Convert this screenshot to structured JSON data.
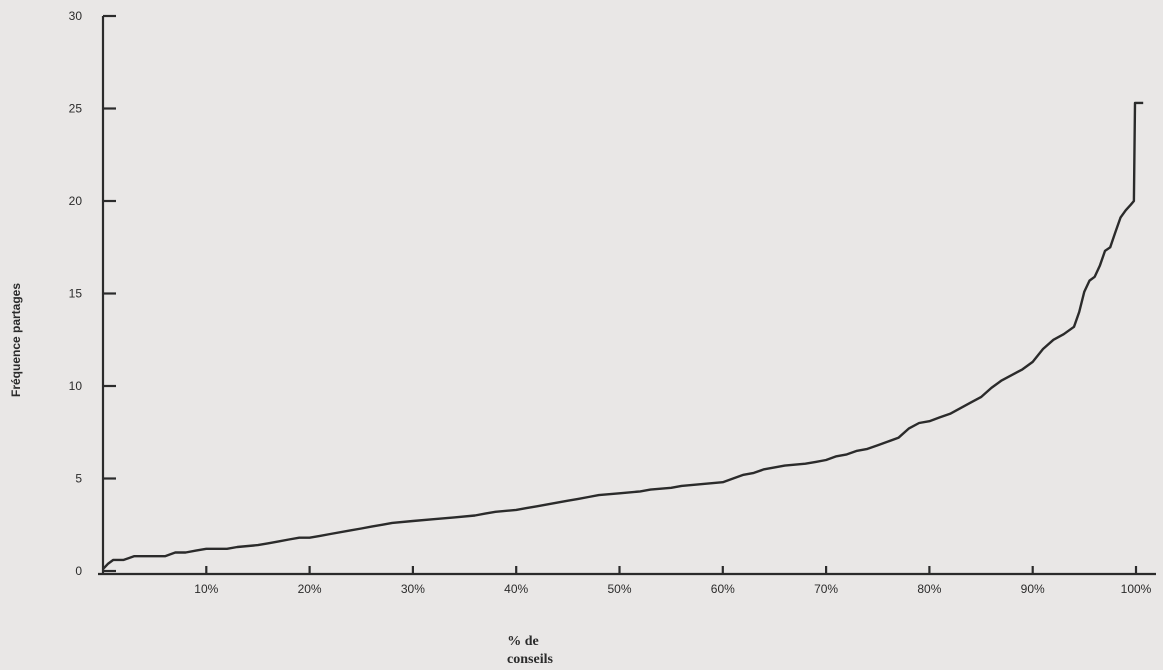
{
  "chart_data": {
    "type": "line",
    "title": "",
    "ylabel": "Fréquence   partages",
    "xlabel_lines": [
      "% de",
      "conseils"
    ],
    "xlim": [
      0,
      100
    ],
    "ylim": [
      0,
      30
    ],
    "x_ticks": [
      {
        "value": 10,
        "label": "10%"
      },
      {
        "value": 20,
        "label": "20%"
      },
      {
        "value": 30,
        "label": "30%"
      },
      {
        "value": 40,
        "label": "40%"
      },
      {
        "value": 50,
        "label": "50%"
      },
      {
        "value": 60,
        "label": "60%"
      },
      {
        "value": 70,
        "label": "70%"
      },
      {
        "value": 80,
        "label": "80%"
      },
      {
        "value": 90,
        "label": "90%"
      },
      {
        "value": 100,
        "label": "100%"
      }
    ],
    "y_ticks": [
      {
        "value": 0,
        "label": "0"
      },
      {
        "value": 5,
        "label": "5"
      },
      {
        "value": 10,
        "label": "10"
      },
      {
        "value": 15,
        "label": "15"
      },
      {
        "value": 20,
        "label": "20"
      },
      {
        "value": 25,
        "label": "25"
      },
      {
        "value": 30,
        "label": "30"
      }
    ],
    "grid": false,
    "legend": "none",
    "series": [
      {
        "color": "#2b2b2b",
        "x": [
          0,
          0.5,
          1,
          2,
          3,
          5,
          6,
          6.5,
          7,
          8,
          9,
          10,
          12,
          13,
          15,
          16,
          17,
          18,
          19,
          20,
          21,
          22,
          24,
          25,
          26,
          27,
          28,
          30,
          32,
          34,
          36,
          37,
          38,
          40,
          41,
          42,
          44,
          45,
          46,
          47,
          48,
          50,
          52,
          53,
          55,
          56,
          58,
          60,
          61,
          62,
          63,
          64,
          65,
          66,
          68,
          69,
          70,
          71,
          72,
          73,
          74,
          75,
          76,
          77,
          78,
          79,
          80,
          81,
          82,
          83,
          84,
          85,
          86,
          87,
          88,
          89,
          90,
          91,
          92,
          93,
          94,
          94.5,
          95,
          95.5,
          96,
          96.5,
          97,
          97.5,
          98,
          98.5,
          99,
          99.5,
          99.8,
          99.9,
          100,
          100.7
        ],
        "y": [
          0.1,
          0.4,
          0.6,
          0.6,
          0.8,
          0.8,
          0.8,
          0.9,
          1.0,
          1.0,
          1.1,
          1.2,
          1.2,
          1.3,
          1.4,
          1.5,
          1.6,
          1.7,
          1.8,
          1.8,
          1.9,
          2.0,
          2.2,
          2.3,
          2.4,
          2.5,
          2.6,
          2.7,
          2.8,
          2.9,
          3.0,
          3.1,
          3.2,
          3.3,
          3.4,
          3.5,
          3.7,
          3.8,
          3.9,
          4.0,
          4.1,
          4.2,
          4.3,
          4.4,
          4.5,
          4.6,
          4.7,
          4.8,
          5.0,
          5.2,
          5.3,
          5.5,
          5.6,
          5.7,
          5.8,
          5.9,
          6.0,
          6.2,
          6.3,
          6.5,
          6.6,
          6.8,
          7.0,
          7.2,
          7.7,
          8.0,
          8.1,
          8.3,
          8.5,
          8.8,
          9.1,
          9.4,
          9.9,
          10.3,
          10.6,
          10.9,
          11.3,
          12.0,
          12.5,
          12.8,
          13.2,
          14.0,
          15.1,
          15.7,
          15.9,
          16.5,
          17.3,
          17.5,
          18.3,
          19.1,
          19.5,
          19.8,
          20.0,
          25.3,
          25.3,
          25.3
        ]
      }
    ]
  }
}
